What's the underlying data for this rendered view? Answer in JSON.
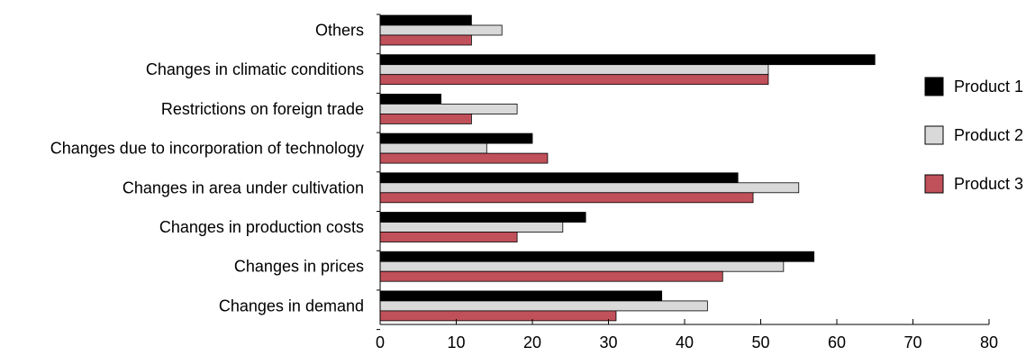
{
  "chart_data": {
    "type": "bar",
    "orientation": "horizontal",
    "categories": [
      "Others",
      "Changes in climatic conditions",
      "Restrictions on foreign trade",
      "Changes due to incorporation of technology",
      "Changes in area under cultivation",
      "Changes in production costs",
      "Changes in prices",
      "Changes in demand"
    ],
    "series": [
      {
        "name": "Product 1",
        "color": "#000000",
        "values": [
          12,
          65,
          8,
          20,
          47,
          27,
          57,
          37
        ]
      },
      {
        "name": "Product 2",
        "color": "#d9d9d9",
        "values": [
          16,
          51,
          18,
          14,
          55,
          24,
          53,
          43
        ]
      },
      {
        "name": "Product 3",
        "color": "#c0505a",
        "values": [
          12,
          51,
          12,
          22,
          49,
          18,
          45,
          31
        ]
      }
    ],
    "xlim": [
      0,
      80
    ],
    "xticks": [
      0,
      10,
      20,
      30,
      40,
      50,
      60,
      70,
      80
    ],
    "title": "",
    "xlabel": "",
    "ylabel": "",
    "grid": false,
    "legend_position": "right"
  }
}
